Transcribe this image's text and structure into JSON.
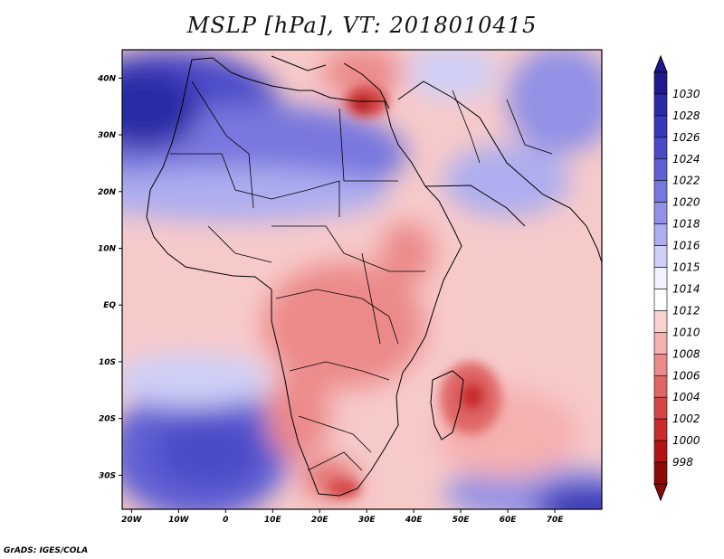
{
  "title": "MSLP [hPa], VT: 2018010415",
  "credit": "GrADS: IGES/COLA",
  "lon_ticks": [
    {
      "lon": -20,
      "label": "20W"
    },
    {
      "lon": -10,
      "label": "10W"
    },
    {
      "lon": 0,
      "label": "0"
    },
    {
      "lon": 10,
      "label": "10E"
    },
    {
      "lon": 20,
      "label": "20E"
    },
    {
      "lon": 30,
      "label": "30E"
    },
    {
      "lon": 40,
      "label": "40E"
    },
    {
      "lon": 50,
      "label": "50E"
    },
    {
      "lon": 60,
      "label": "60E"
    },
    {
      "lon": 70,
      "label": "70E"
    }
  ],
  "lat_ticks": [
    {
      "lat": 40,
      "label": "40N"
    },
    {
      "lat": 30,
      "label": "30N"
    },
    {
      "lat": 20,
      "label": "20N"
    },
    {
      "lat": 10,
      "label": "10N"
    },
    {
      "lat": 0,
      "label": "EQ"
    },
    {
      "lat": -10,
      "label": "10S"
    },
    {
      "lat": -20,
      "label": "20S"
    },
    {
      "lat": -30,
      "label": "30S"
    }
  ],
  "extent": {
    "lon_min": -22,
    "lon_max": 80,
    "lat_min": -36,
    "lat_max": 45
  },
  "colorbar": {
    "levels": [
      "1030",
      "1028",
      "1026",
      "1024",
      "1022",
      "1020",
      "1018",
      "1016",
      "1015",
      "1014",
      "1012",
      "1010",
      "1008",
      "1006",
      "1004",
      "1002",
      "1000",
      "998"
    ],
    "colors": [
      "#1e1a8c",
      "#2b2ba6",
      "#3838b8",
      "#4b4bc8",
      "#6060d4",
      "#7777de",
      "#9191e6",
      "#adadef",
      "#cfcff7",
      "#f2f2ff",
      "#ffffff",
      "#fbd2d2",
      "#f5b0b0",
      "#ec8a8a",
      "#e06666",
      "#d44646",
      "#c82c2c",
      "#b01414",
      "#8c0a0a"
    ],
    "top_color": "#1e1a8c",
    "bottom_color": "#8c0a0a"
  }
}
